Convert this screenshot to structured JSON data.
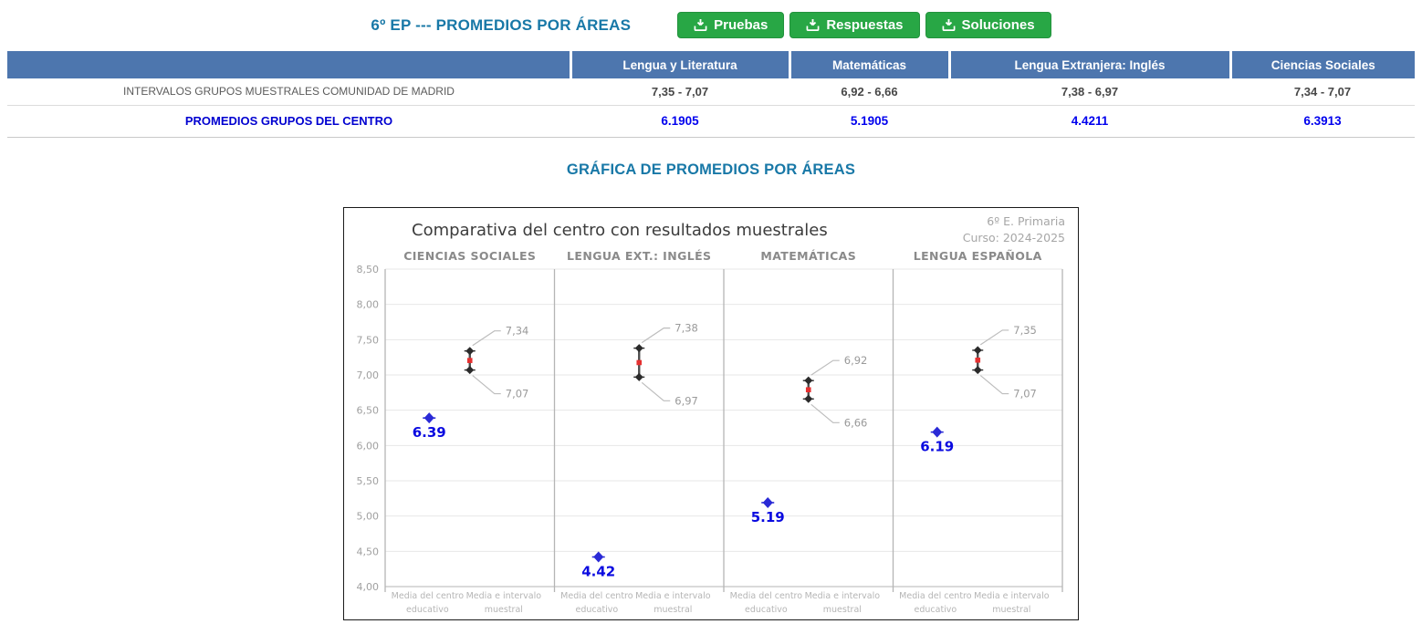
{
  "page": {
    "title": "6º EP --- PROMEDIOS POR ÁREAS",
    "section_title": "GRÁFICA DE PROMEDIOS POR ÁREAS"
  },
  "toolbar": {
    "buttons": [
      {
        "label": "Pruebas",
        "icon": "download-icon"
      },
      {
        "label": "Respuestas",
        "icon": "download-icon"
      },
      {
        "label": "Soluciones",
        "icon": "download-icon"
      }
    ],
    "button_color": "#28a745"
  },
  "table": {
    "columns": [
      "",
      "Lengua y Literatura",
      "Matemáticas",
      "Lengua Extranjera: Inglés",
      "Ciencias Sociales"
    ],
    "header_color": "#4d76ae",
    "rows": [
      {
        "label": "INTERVALOS GRUPOS MUESTRALES COMUNIDAD DE MADRID",
        "values": [
          "7,35 - 7,07",
          "6,92 - 6,66",
          "7,38 - 6,97",
          "7,34 - 7,07"
        ]
      },
      {
        "label": "PROMEDIOS GRUPOS DEL CENTRO",
        "values": [
          "6.1905",
          "5.1905",
          "4.4211",
          "6.3913"
        ]
      }
    ]
  },
  "chart_data": {
    "type": "scatter",
    "title": "Comparativa del centro con resultados muestrales",
    "annotation_line1": "6º E. Primaria",
    "annotation_line2": "Curso: 2024-2025",
    "ylim": [
      4.0,
      8.5
    ],
    "yticks": [
      {
        "value": 8.5,
        "label": "8,50"
      },
      {
        "value": 8.0,
        "label": "8,00"
      },
      {
        "value": 7.5,
        "label": "7,50"
      },
      {
        "value": 7.0,
        "label": "7,00"
      },
      {
        "value": 6.5,
        "label": "6,50"
      },
      {
        "value": 6.0,
        "label": "6,00"
      },
      {
        "value": 5.5,
        "label": "5,50"
      },
      {
        "value": 5.0,
        "label": "5,00"
      },
      {
        "value": 4.5,
        "label": "4,50"
      },
      {
        "value": 4.0,
        "label": "4,00"
      }
    ],
    "x_categories": [
      {
        "lines": [
          "Media del centro",
          "educativo"
        ]
      },
      {
        "lines": [
          "Media e intervalo",
          "muestral"
        ]
      }
    ],
    "panels": [
      {
        "title": "CIENCIAS SOCIALES",
        "center_mean": 6.39,
        "center_label": "6.39",
        "interval_high": 7.34,
        "interval_high_label": "7,34",
        "interval_low": 7.07,
        "interval_low_label": "7,07"
      },
      {
        "title": "LENGUA EXT.: INGLÉS",
        "center_mean": 4.42,
        "center_label": "4.42",
        "interval_high": 7.38,
        "interval_high_label": "7,38",
        "interval_low": 6.97,
        "interval_low_label": "6,97"
      },
      {
        "title": "MATEMÁTICAS",
        "center_mean": 5.19,
        "center_label": "5.19",
        "interval_high": 6.92,
        "interval_high_label": "6,92",
        "interval_low": 6.66,
        "interval_low_label": "6,66"
      },
      {
        "title": "LENGUA ESPAÑOLA",
        "center_mean": 6.19,
        "center_label": "6.19",
        "interval_high": 7.35,
        "interval_high_label": "7,35",
        "interval_low": 7.07,
        "interval_low_label": "7,07"
      }
    ],
    "colors": {
      "title_text": "#3c3c3c",
      "annotation_text": "#a6a6a6",
      "panel_title_text": "#8a8a8a",
      "tick_text": "#a0a0a0",
      "xtick_text": "#b5b5b5",
      "grid": "#e7e7e7",
      "panel_border": "#b5b5b5",
      "center_point": "#2a2ad6",
      "center_label": "#0a0ae0",
      "interval_line": "#4d4d4d",
      "interval_marker": "#2b2b2b",
      "interval_mid": "#e53030",
      "leader_line": "#bdbdbd",
      "interval_label_text": "#9a9a9a"
    }
  }
}
